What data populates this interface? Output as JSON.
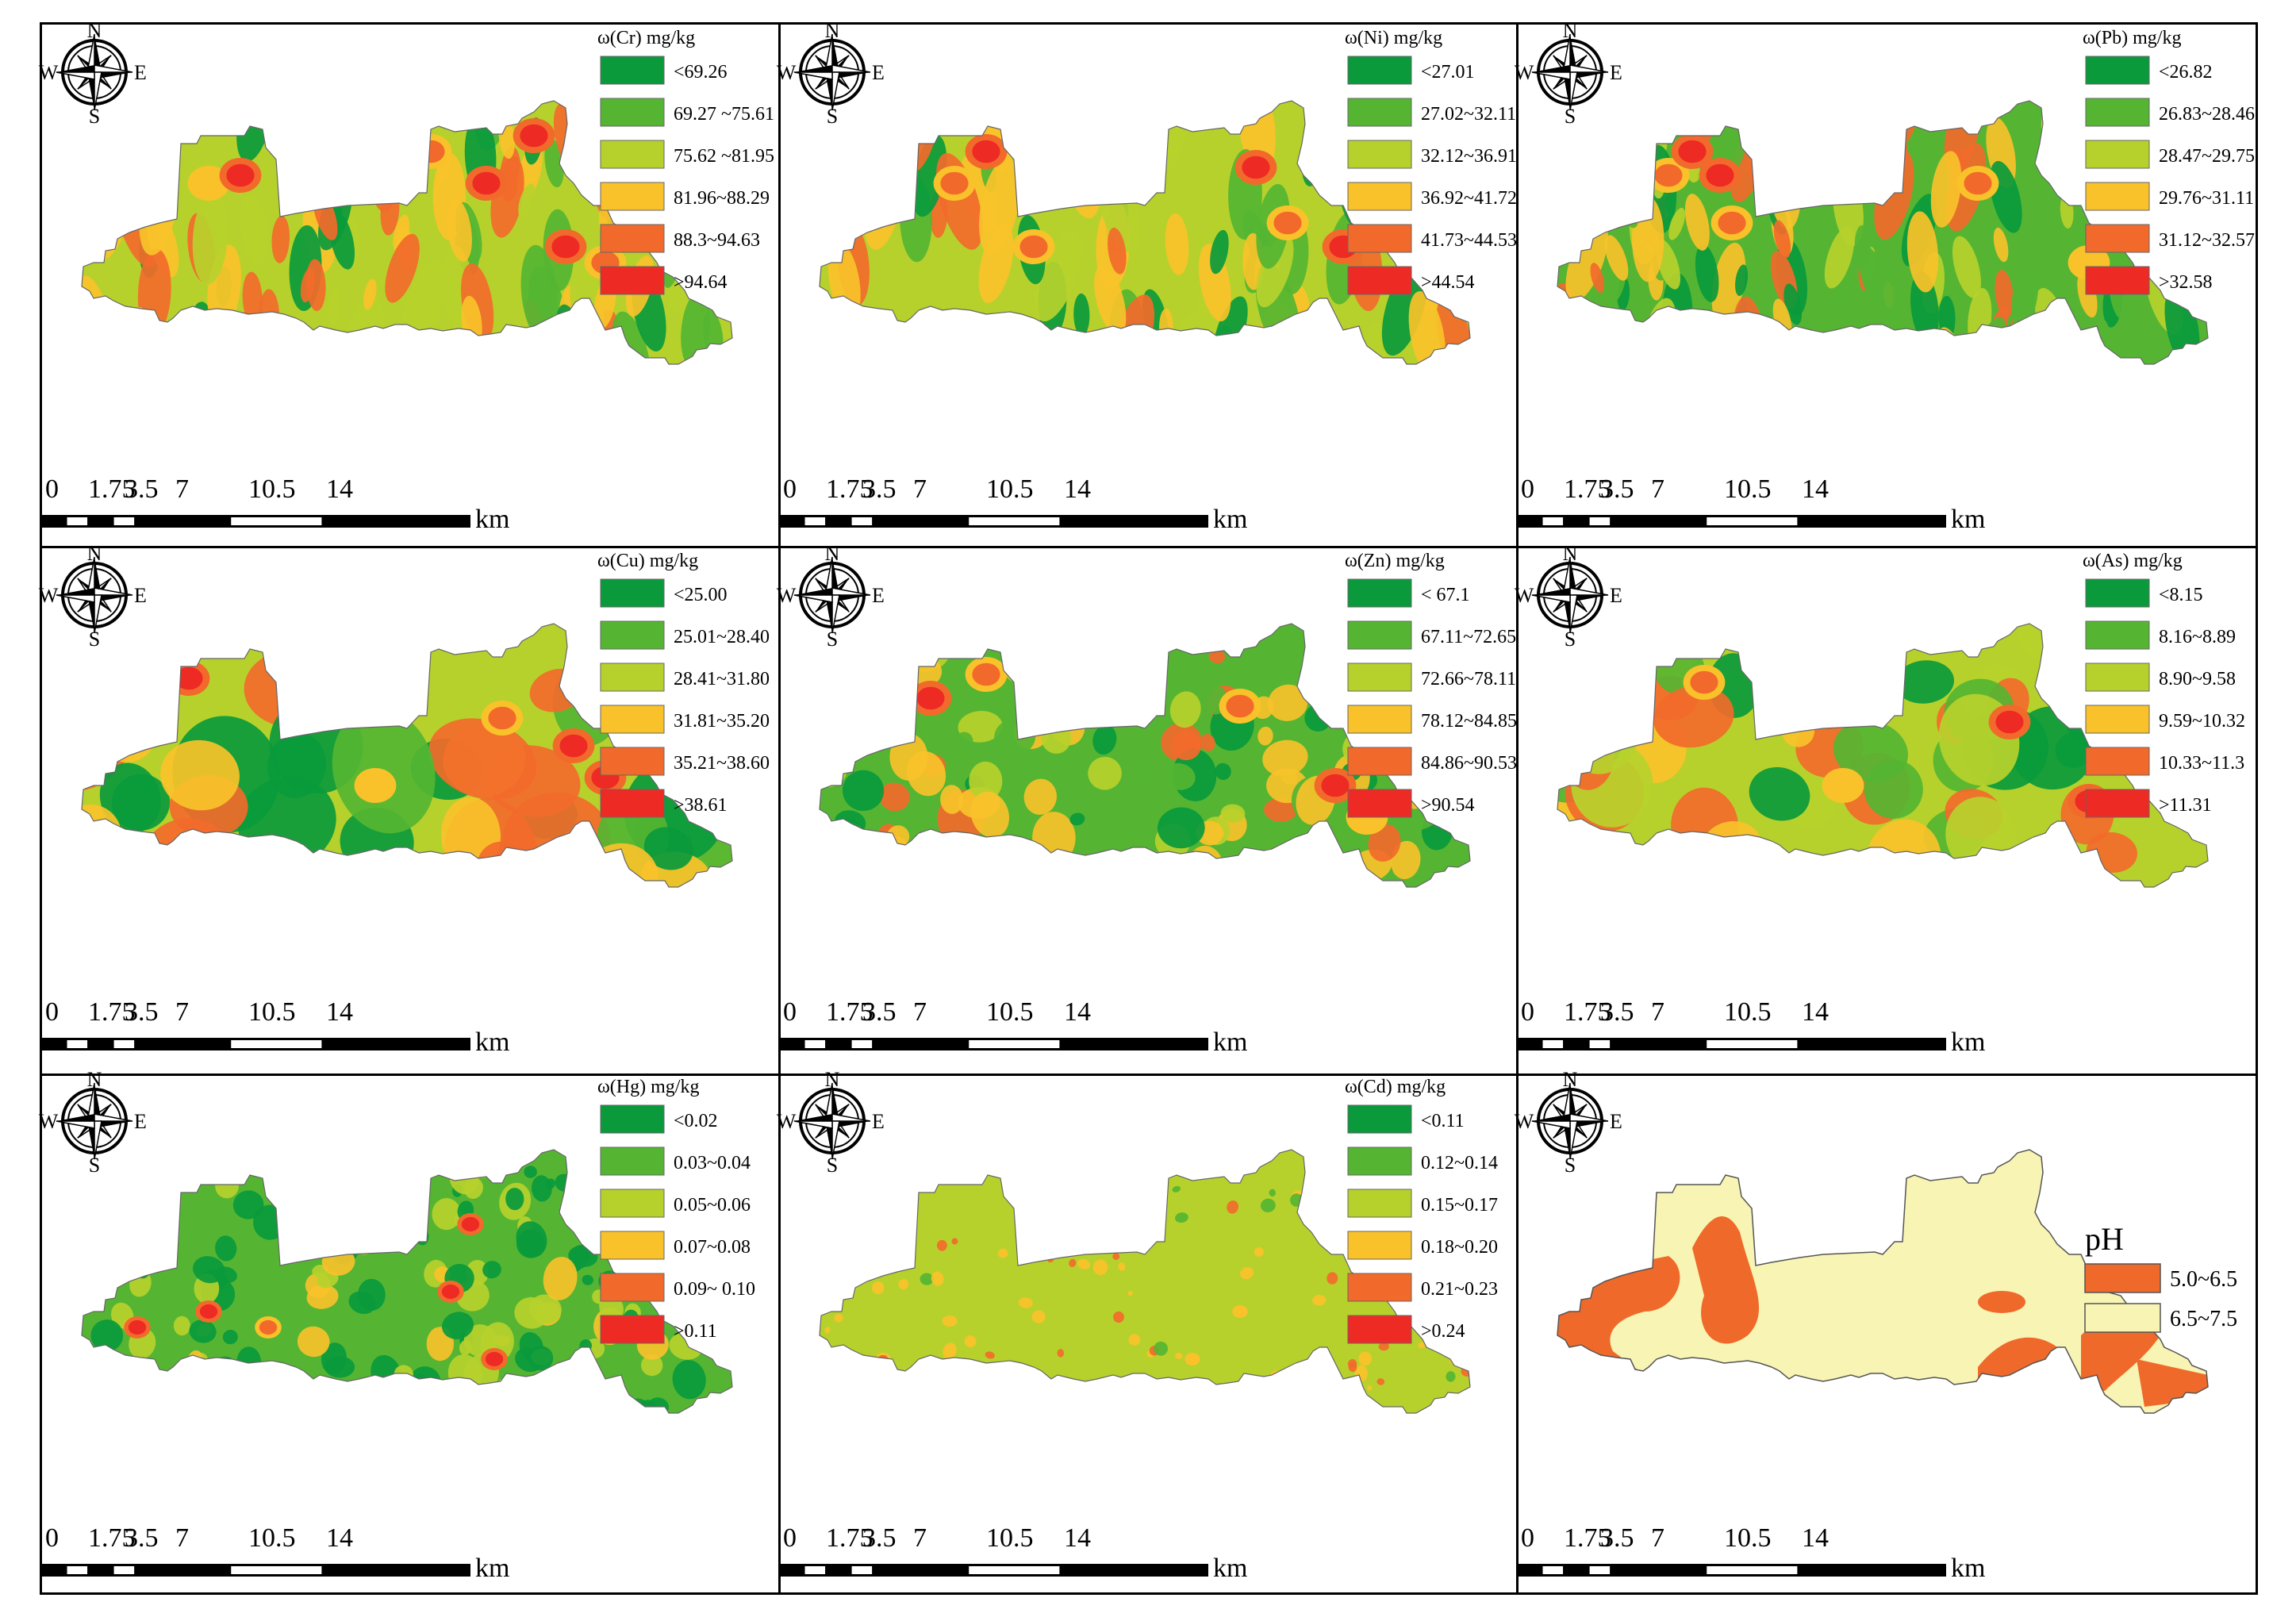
{
  "compass": {
    "n": "N",
    "s": "S",
    "e": "E",
    "w": "W"
  },
  "scalebar": {
    "ticks": [
      "0",
      "1.75",
      "3.5",
      "7",
      "10.5",
      "14"
    ],
    "unit": "km"
  },
  "colors": {
    "class_palette": [
      "#0a9a3c",
      "#55b532",
      "#b7d12c",
      "#f9c22a",
      "#f26a2b",
      "#ee2a25"
    ],
    "ph_palette": [
      "#ef6a2a",
      "#f8f4b4"
    ]
  },
  "panels": [
    {
      "id": "cr",
      "title": "ω(Cr) mg/kg",
      "classes": [
        "<69.26",
        "69.27 ~75.61",
        "75.62 ~81.95",
        "81.96~88.29",
        "88.3~94.63",
        ">94.64"
      ]
    },
    {
      "id": "ni",
      "title": "ω(Ni) mg/kg",
      "classes": [
        "<27.01",
        "27.02~32.11",
        "32.12~36.91",
        "36.92~41.72",
        "41.73~44.53",
        ">44.54"
      ]
    },
    {
      "id": "pb",
      "title": "ω(Pb) mg/kg",
      "classes": [
        "<26.82",
        "26.83~28.46",
        "28.47~29.75",
        "29.76~31.11",
        "31.12~32.57",
        ">32.58"
      ]
    },
    {
      "id": "cu",
      "title": "ω(Cu) mg/kg",
      "classes": [
        "<25.00",
        "25.01~28.40",
        "28.41~31.80",
        "31.81~35.20",
        "35.21~38.60",
        ">38.61"
      ]
    },
    {
      "id": "zn",
      "title": "ω(Zn) mg/kg",
      "classes": [
        "< 67.1",
        "67.11~72.65",
        "72.66~78.11",
        "78.12~84.85",
        "84.86~90.53",
        ">90.54"
      ]
    },
    {
      "id": "as",
      "title": "ω(As) mg/kg",
      "classes": [
        "<8.15",
        "8.16~8.89",
        "8.90~9.58",
        "9.59~10.32",
        "10.33~11.3",
        ">11.31"
      ]
    },
    {
      "id": "hg",
      "title": "ω(Hg) mg/kg",
      "classes": [
        "<0.02",
        "0.03~0.04",
        "0.05~0.06",
        "0.07~0.08",
        "0.09~ 0.10",
        ">0.11"
      ]
    },
    {
      "id": "cd",
      "title": "ω(Cd) mg/kg",
      "classes": [
        "<0.11",
        "0.12~0.14",
        "0.15~0.17",
        "0.18~0.20",
        "0.21~0.23",
        ">0.24"
      ]
    },
    {
      "id": "ph",
      "title": "pH",
      "classes": [
        "5.0~6.5",
        "6.5~7.5"
      ]
    }
  ]
}
